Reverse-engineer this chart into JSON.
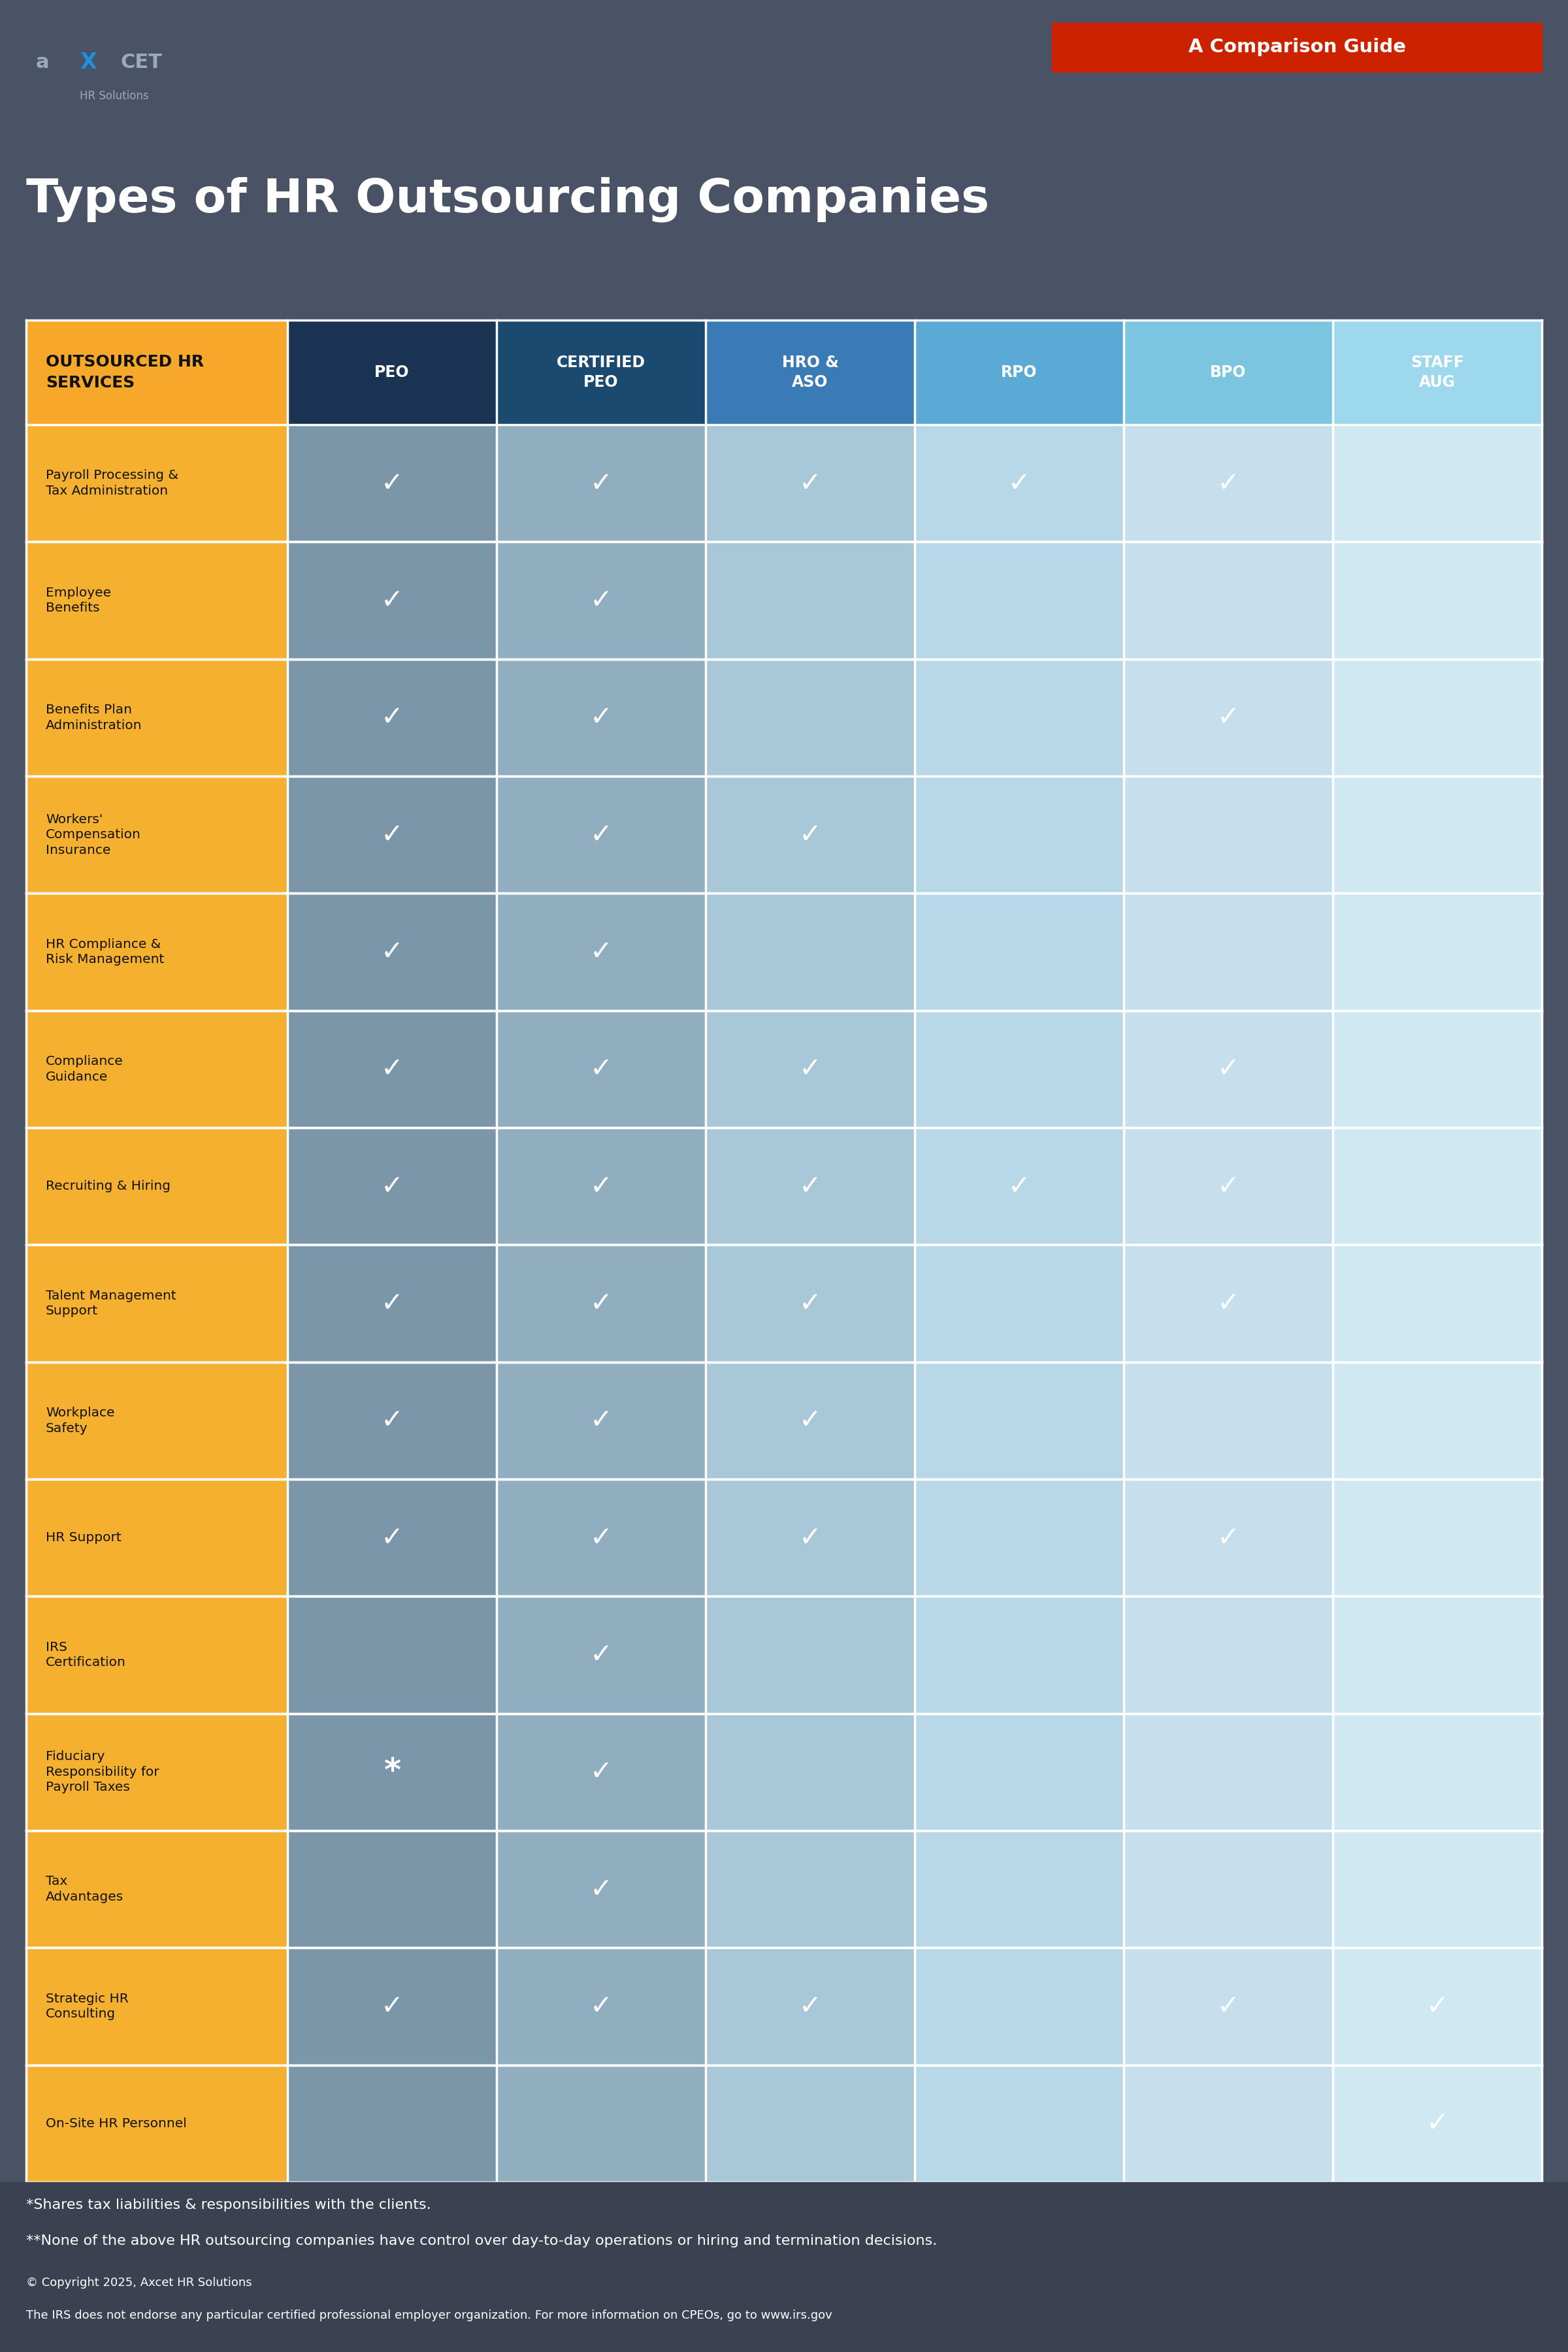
{
  "title": "Types of HR Outsourcing Companies",
  "bg_color": "#4a5265",
  "red_banner_text": "A Comparison Guide",
  "red_banner_color": "#cc2200",
  "col_header_label": "OUTSOURCED HR\nSERVICES",
  "col_header_label_bg": "#f5a82a",
  "col_header_label_text": "#111111",
  "columns": [
    "PEO",
    "CERTIFIED\nPEO",
    "HRO &\nASO",
    "RPO",
    "BPO",
    "STAFF\nAUG"
  ],
  "col_header_colors": [
    "#1a3352",
    "#1a4a70",
    "#3a7ab5",
    "#5aaad5",
    "#7cc5e0",
    "#9dd8ec"
  ],
  "row_label_bg": "#f5b030",
  "row_cell_colors": [
    "#7a96a8",
    "#90aec0",
    "#a8c8d8",
    "#b8d8e8",
    "#c5e0ec",
    "#d0e8f2"
  ],
  "rows": [
    "Payroll Processing &\nTax Administration",
    "Employee\nBenefits",
    "Benefits Plan\nAdministration",
    "Workers'\nCompensation\nInsurance",
    "HR Compliance &\nRisk Management",
    "Compliance\nGuidance",
    "Recruiting & Hiring",
    "Talent Management\nSupport",
    "Workplace\nSafety",
    "HR Support",
    "IRS\nCertification",
    "Fiduciary\nResponsibility for\nPayroll Taxes",
    "Tax\nAdvantages",
    "Strategic HR\nConsulting",
    "On-Site HR Personnel"
  ],
  "checks": [
    [
      1,
      1,
      1,
      1,
      1,
      0
    ],
    [
      1,
      1,
      0,
      0,
      0,
      0
    ],
    [
      1,
      1,
      0,
      0,
      1,
      0
    ],
    [
      1,
      1,
      1,
      0,
      0,
      0
    ],
    [
      1,
      1,
      0,
      0,
      0,
      0
    ],
    [
      1,
      1,
      1,
      0,
      1,
      0
    ],
    [
      1,
      1,
      1,
      1,
      1,
      0
    ],
    [
      1,
      1,
      1,
      0,
      1,
      0
    ],
    [
      1,
      1,
      1,
      0,
      0,
      0
    ],
    [
      1,
      1,
      1,
      0,
      1,
      0
    ],
    [
      0,
      1,
      0,
      0,
      0,
      0
    ],
    [
      2,
      1,
      0,
      0,
      0,
      0
    ],
    [
      0,
      1,
      0,
      0,
      0,
      0
    ],
    [
      1,
      1,
      1,
      0,
      1,
      1
    ],
    [
      0,
      0,
      0,
      0,
      0,
      1
    ]
  ],
  "footnote_lines": [
    "*Shares tax liabilities & responsibilities with the clients.",
    "**None of the above HR outsourcing companies have control over day-to-day operations or hiring and termination decisions.",
    "© Copyright 2025, Axcet HR Solutions",
    "The IRS does not endorse any particular certified professional employer organization. For more information on CPEOs, go to www.irs.gov"
  ]
}
